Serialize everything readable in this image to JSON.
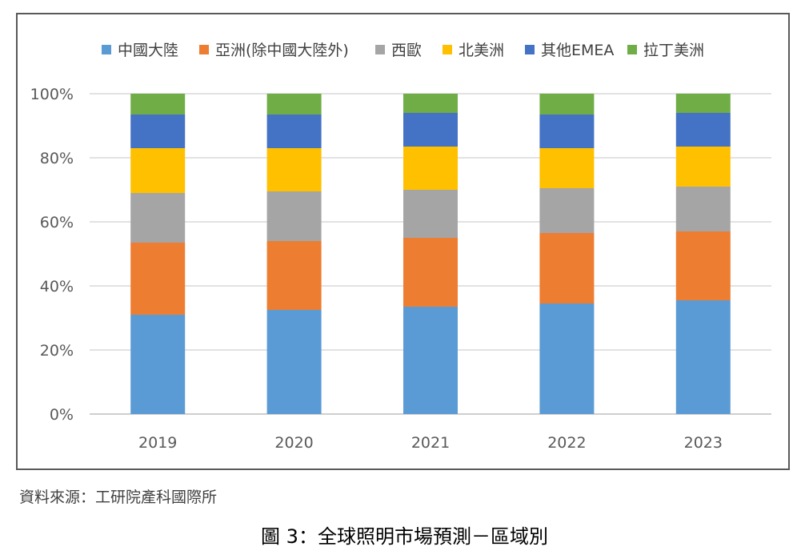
{
  "source_note": "資料來源：工研院產科國際所",
  "caption": "圖 3：全球照明市場預測－區域別",
  "chart_data": {
    "type": "bar",
    "stacked": true,
    "percent_stacked": true,
    "title": "",
    "xlabel": "",
    "ylabel": "",
    "ylim": [
      0,
      100
    ],
    "y_ticks": [
      "0%",
      "20%",
      "40%",
      "60%",
      "80%",
      "100%"
    ],
    "grid": true,
    "legend_position": "top",
    "categories": [
      "2019",
      "2020",
      "2021",
      "2022",
      "2023"
    ],
    "series": [
      {
        "name": "中國大陸",
        "color": "#5b9bd5",
        "values": [
          31,
          32.5,
          33.5,
          34.5,
          35.5
        ]
      },
      {
        "name": "亞洲(除中國大陸外)",
        "color": "#ed7d31",
        "values": [
          22.5,
          21.5,
          21.5,
          22,
          21.5
        ]
      },
      {
        "name": "西歐",
        "color": "#a5a5a5",
        "values": [
          15.5,
          15.5,
          15,
          14,
          14
        ]
      },
      {
        "name": "北美洲",
        "color": "#ffc000",
        "values": [
          14,
          13.5,
          13.5,
          12.5,
          12.5
        ]
      },
      {
        "name": "其他EMEA",
        "color": "#4472c4",
        "values": [
          10.5,
          10.5,
          10.5,
          10.5,
          10.5
        ]
      },
      {
        "name": "拉丁美洲",
        "color": "#70ad47",
        "values": [
          6.5,
          6.5,
          6,
          6.5,
          6
        ]
      }
    ]
  }
}
